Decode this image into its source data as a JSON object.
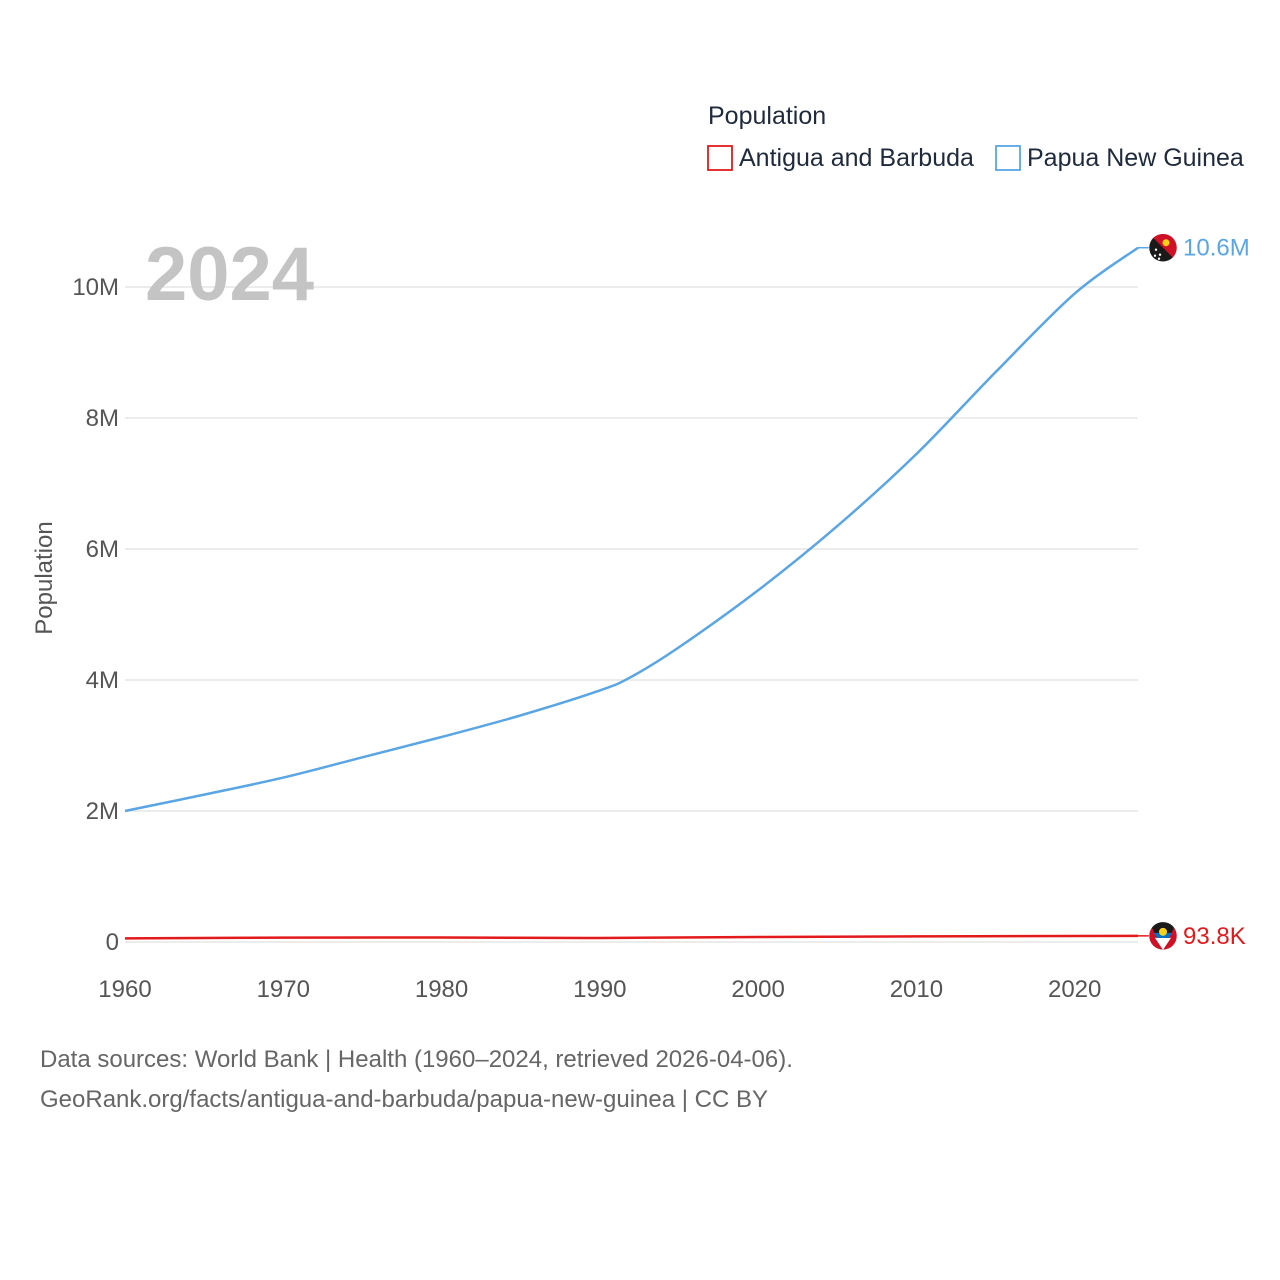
{
  "chart_data": {
    "type": "line",
    "title": "2024",
    "legend_title": "Population",
    "legend_position": "top-right",
    "xlabel": "",
    "ylabel": "Population",
    "xlim": [
      1960,
      2024
    ],
    "ylim": [
      0,
      10600000
    ],
    "x_ticks": [
      1960,
      1970,
      1980,
      1990,
      2000,
      2010,
      2020
    ],
    "x_tick_labels": [
      "1960",
      "1970",
      "1980",
      "1990",
      "2000",
      "2010",
      "2020"
    ],
    "y_ticks": [
      0,
      2000000,
      4000000,
      6000000,
      8000000,
      10000000
    ],
    "y_tick_labels": [
      "0",
      "2M",
      "4M",
      "6M",
      "8M",
      "10M"
    ],
    "grid": true,
    "series": [
      {
        "name": "Antigua and Barbuda",
        "color": "#e31a1c",
        "end_label": "93.8K",
        "points": [
          [
            1960,
            55000
          ],
          [
            1970,
            66000
          ],
          [
            1980,
            69000
          ],
          [
            1990,
            62000
          ],
          [
            2000,
            76000
          ],
          [
            2010,
            86000
          ],
          [
            2020,
            92000
          ],
          [
            2024,
            93800
          ]
        ]
      },
      {
        "name": "Papua New Guinea",
        "color": "#5aa5e3",
        "end_label": "10.6M",
        "points": [
          [
            1960,
            2000000
          ],
          [
            1965,
            2250000
          ],
          [
            1970,
            2510000
          ],
          [
            1975,
            2820000
          ],
          [
            1980,
            3130000
          ],
          [
            1985,
            3460000
          ],
          [
            1990,
            3840000
          ],
          [
            1992,
            4050000
          ],
          [
            1995,
            4500000
          ],
          [
            2000,
            5370000
          ],
          [
            2005,
            6350000
          ],
          [
            2010,
            7450000
          ],
          [
            2015,
            8700000
          ],
          [
            2020,
            9900000
          ],
          [
            2024,
            10600000
          ]
        ]
      }
    ]
  },
  "footer": {
    "line1": "Data sources: World Bank | Health (1960–2024, retrieved 2026-04-06).",
    "line2": "GeoRank.org/facts/antigua-and-barbuda/papua-new-guinea | CC BY"
  },
  "icons": {
    "flag1": "antigua-and-barbuda-flag-icon",
    "flag2": "papua-new-guinea-flag-icon"
  }
}
